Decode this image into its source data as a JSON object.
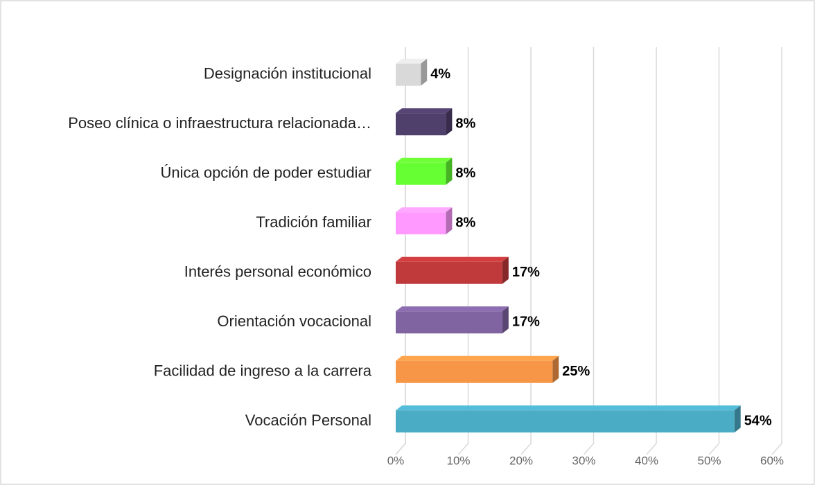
{
  "chart_data": {
    "type": "bar3d_horizontal",
    "categories": [
      "Designación institucional",
      "Poseo clínica o infraestructura relacionada…",
      "Única opción de poder estudiar",
      "Tradición familiar",
      "Interés personal económico",
      "Orientación vocacional",
      "Facilidad de ingreso a la carrera",
      "Vocación Personal"
    ],
    "values": [
      4,
      8,
      8,
      8,
      17,
      17,
      25,
      54
    ],
    "value_labels": [
      "4%",
      "8%",
      "8%",
      "8%",
      "17%",
      "17%",
      "25%",
      "54%"
    ],
    "colors": [
      "#d9d9d9",
      "#4f3f6b",
      "#66ff33",
      "#ff99ff",
      "#c0393b",
      "#8064a2",
      "#f79646",
      "#4bacc6"
    ],
    "xlim": [
      0,
      60
    ],
    "xticks": [
      {
        "value": 0,
        "label": "0%"
      },
      {
        "value": 10,
        "label": "10%"
      },
      {
        "value": 20,
        "label": "20%"
      },
      {
        "value": 30,
        "label": "30%"
      },
      {
        "value": 40,
        "label": "40%"
      },
      {
        "value": 50,
        "label": "50%"
      },
      {
        "value": 60,
        "label": "60%"
      }
    ],
    "grid": true
  }
}
